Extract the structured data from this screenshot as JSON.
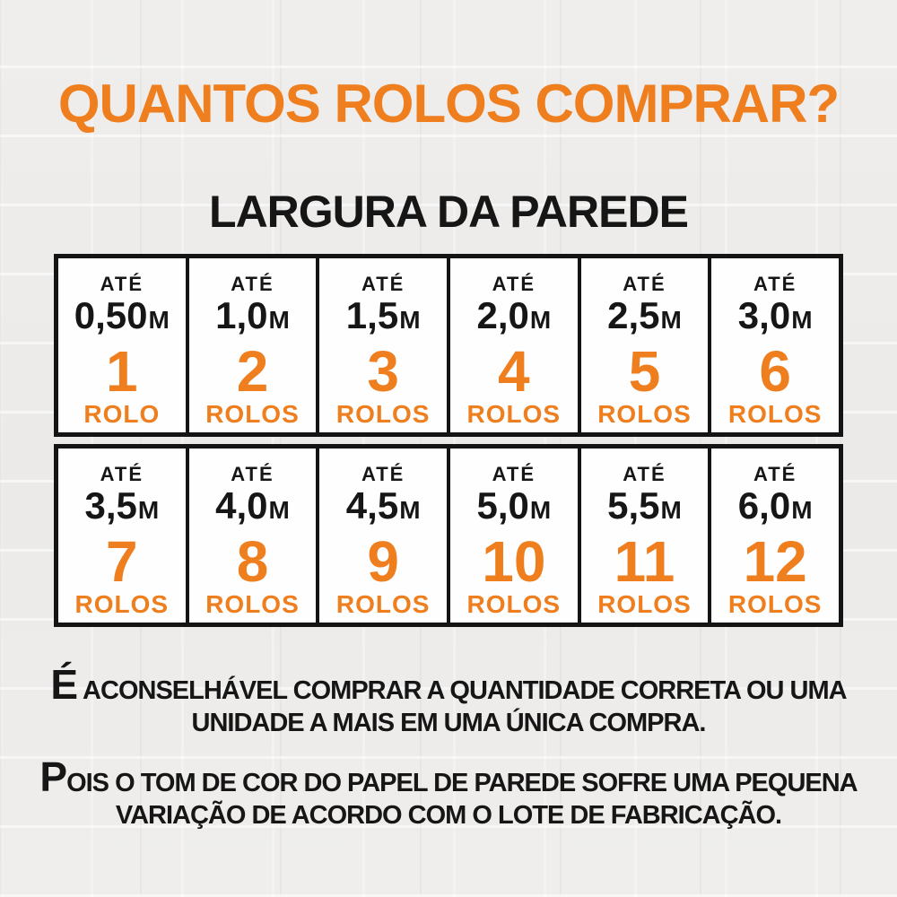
{
  "page": {
    "title": "QUANTOS ROLOS COMPRAR?",
    "subtitle": "LARGURA DA PAREDE"
  },
  "table": {
    "cells": [
      {
        "upto": "ATÉ",
        "width": "0,50",
        "unit": "M",
        "count": "1",
        "count_label": "ROLO"
      },
      {
        "upto": "ATÉ",
        "width": "1,0",
        "unit": "M",
        "count": "2",
        "count_label": "ROLOS"
      },
      {
        "upto": "ATÉ",
        "width": "1,5",
        "unit": "M",
        "count": "3",
        "count_label": "ROLOS"
      },
      {
        "upto": "ATÉ",
        "width": "2,0",
        "unit": "M",
        "count": "4",
        "count_label": "ROLOS"
      },
      {
        "upto": "ATÉ",
        "width": "2,5",
        "unit": "M",
        "count": "5",
        "count_label": "ROLOS"
      },
      {
        "upto": "ATÉ",
        "width": "3,0",
        "unit": "M",
        "count": "6",
        "count_label": "ROLOS"
      },
      {
        "upto": "ATÉ",
        "width": "3,5",
        "unit": "M",
        "count": "7",
        "count_label": "ROLOS"
      },
      {
        "upto": "ATÉ",
        "width": "4,0",
        "unit": "M",
        "count": "8",
        "count_label": "ROLOS"
      },
      {
        "upto": "ATÉ",
        "width": "4,5",
        "unit": "M",
        "count": "9",
        "count_label": "ROLOS"
      },
      {
        "upto": "ATÉ",
        "width": "5,0",
        "unit": "M",
        "count": "10",
        "count_label": "ROLOS"
      },
      {
        "upto": "ATÉ",
        "width": "5,5",
        "unit": "M",
        "count": "11",
        "count_label": "ROLOS"
      },
      {
        "upto": "ATÉ",
        "width": "6,0",
        "unit": "M",
        "count": "12",
        "count_label": "ROLOS"
      }
    ]
  },
  "notes": {
    "advice": {
      "lead": "É",
      "line1_rest": " ACONSELHÁVEL COMPRAR A QUANTIDADE CORRETA OU UMA",
      "line2": "UNIDADE A MAIS EM UMA ÚNICA COMPRA."
    },
    "disclaimer": {
      "lead": "P",
      "line1_rest": "OIS O TOM DE COR DO PAPEL DE PAREDE SOFRE UMA PEQUENA",
      "line2": "VARIAÇÃO DE ACORDO COM O LOTE DE FABRICAÇÃO."
    }
  },
  "colors": {
    "accent_orange": "#EE7E1E",
    "text_black": "#161616",
    "cell_background": "#FFFFFF",
    "table_border": "#141414",
    "page_background": "#EDECEA"
  },
  "chart_data": {
    "type": "table",
    "title": "QUANTOS ROLOS COMPRAR?",
    "columns": [
      "Largura da parede (até)",
      "Rolos"
    ],
    "rows": [
      [
        "0,50 m",
        1
      ],
      [
        "1,0 m",
        2
      ],
      [
        "1,5 m",
        3
      ],
      [
        "2,0 m",
        4
      ],
      [
        "2,5 m",
        5
      ],
      [
        "3,0 m",
        6
      ],
      [
        "3,5 m",
        7
      ],
      [
        "4,0 m",
        8
      ],
      [
        "4,5 m",
        9
      ],
      [
        "5,0 m",
        10
      ],
      [
        "5,5 m",
        11
      ],
      [
        "6,0 m",
        12
      ]
    ]
  }
}
